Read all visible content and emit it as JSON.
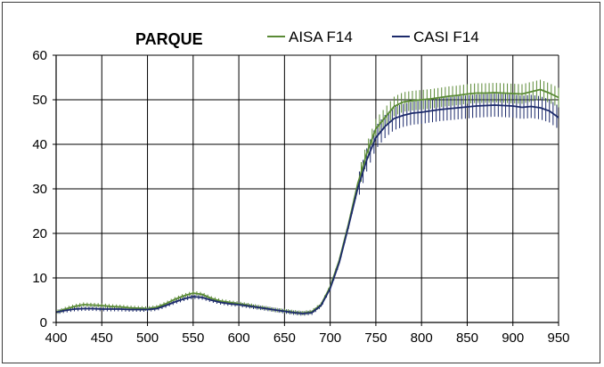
{
  "chart_data": {
    "type": "line",
    "title": "PARQUE",
    "xlabel": "",
    "ylabel": "",
    "xlim": [
      400,
      950
    ],
    "ylim": [
      0,
      60
    ],
    "xticks": [
      400,
      450,
      500,
      550,
      600,
      650,
      700,
      750,
      800,
      850,
      900,
      950
    ],
    "yticks": [
      0,
      10,
      20,
      30,
      40,
      50,
      60
    ],
    "grid": true,
    "legend_position": "top",
    "series": [
      {
        "name": "AISA F14",
        "color": "#5a8a35",
        "error_bars": true,
        "x": [
          400,
          410,
          420,
          430,
          440,
          450,
          460,
          470,
          480,
          490,
          500,
          510,
          520,
          530,
          540,
          550,
          560,
          570,
          580,
          590,
          600,
          610,
          620,
          630,
          640,
          650,
          660,
          670,
          680,
          690,
          700,
          710,
          720,
          730,
          740,
          750,
          760,
          770,
          780,
          790,
          800,
          810,
          820,
          830,
          840,
          850,
          860,
          870,
          880,
          890,
          900,
          910,
          920,
          930,
          940,
          950
        ],
        "values": [
          2.3,
          3.0,
          3.6,
          4.0,
          3.9,
          3.8,
          3.6,
          3.5,
          3.3,
          3.2,
          3.1,
          3.4,
          4.2,
          5.2,
          6.0,
          6.6,
          6.3,
          5.4,
          4.8,
          4.5,
          4.2,
          3.9,
          3.5,
          3.2,
          2.8,
          2.6,
          2.3,
          2.1,
          2.4,
          4.0,
          8.0,
          14.0,
          22.0,
          31.0,
          38.0,
          43.5,
          46.0,
          48.5,
          49.5,
          49.8,
          50.0,
          50.2,
          50.5,
          50.8,
          51.0,
          51.3,
          51.5,
          51.5,
          51.6,
          51.5,
          51.4,
          51.3,
          51.8,
          52.3,
          51.5,
          50.5
        ]
      },
      {
        "name": "CASI F14",
        "color": "#1c2a6b",
        "error_bars": true,
        "x": [
          400,
          410,
          420,
          430,
          440,
          450,
          460,
          470,
          480,
          490,
          500,
          510,
          520,
          530,
          540,
          550,
          560,
          570,
          580,
          590,
          600,
          610,
          620,
          630,
          640,
          650,
          660,
          670,
          680,
          690,
          700,
          710,
          720,
          730,
          740,
          750,
          760,
          770,
          780,
          790,
          800,
          810,
          820,
          830,
          840,
          850,
          860,
          870,
          880,
          890,
          900,
          910,
          920,
          930,
          940,
          950
        ],
        "values": [
          2.3,
          2.7,
          3.0,
          3.1,
          3.1,
          3.0,
          3.0,
          3.0,
          2.9,
          2.9,
          2.9,
          3.1,
          3.8,
          4.6,
          5.3,
          5.8,
          5.6,
          5.0,
          4.5,
          4.2,
          4.0,
          3.7,
          3.4,
          3.1,
          2.8,
          2.5,
          2.2,
          2.0,
          2.2,
          3.8,
          7.6,
          13.5,
          21.5,
          30.0,
          36.5,
          41.5,
          44.0,
          45.8,
          46.5,
          47.0,
          47.2,
          47.5,
          47.8,
          48.0,
          48.2,
          48.4,
          48.6,
          48.7,
          48.8,
          48.7,
          48.6,
          48.3,
          48.5,
          48.2,
          47.5,
          46.0
        ]
      }
    ]
  }
}
